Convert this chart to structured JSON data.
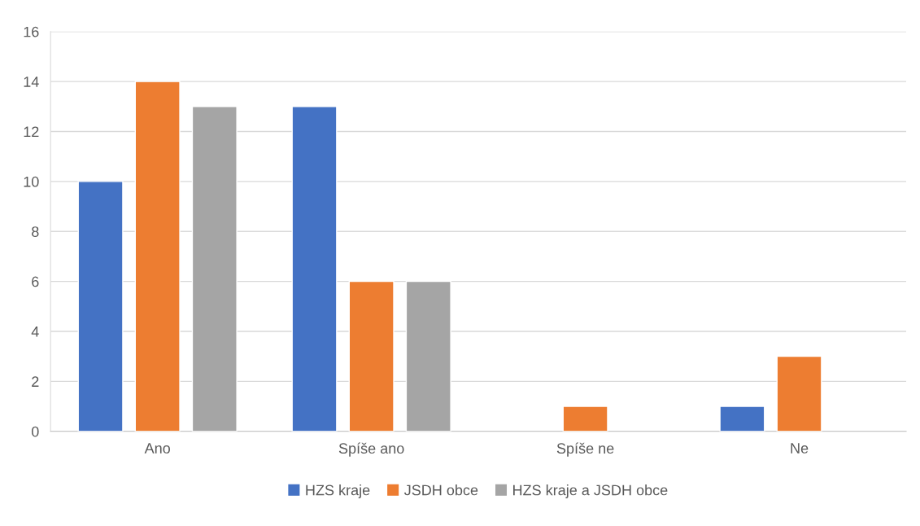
{
  "chart_data": {
    "type": "bar",
    "categories": [
      "Ano",
      "Spíše ano",
      "Spíše ne",
      "Ne"
    ],
    "series": [
      {
        "name": "HZS kraje",
        "color": "#4472c4",
        "values": [
          10,
          13,
          null,
          1
        ]
      },
      {
        "name": "JSDH obce",
        "color": "#ed7d31",
        "values": [
          14,
          6,
          1,
          3
        ]
      },
      {
        "name": "HZS kraje a JSDH obce",
        "color": "#a5a5a5",
        "values": [
          13,
          6,
          null,
          null
        ]
      }
    ],
    "ylim": [
      0,
      16
    ],
    "yticks": [
      0,
      2,
      4,
      6,
      8,
      10,
      12,
      14,
      16
    ],
    "grid": "y",
    "legend": "bottom"
  }
}
